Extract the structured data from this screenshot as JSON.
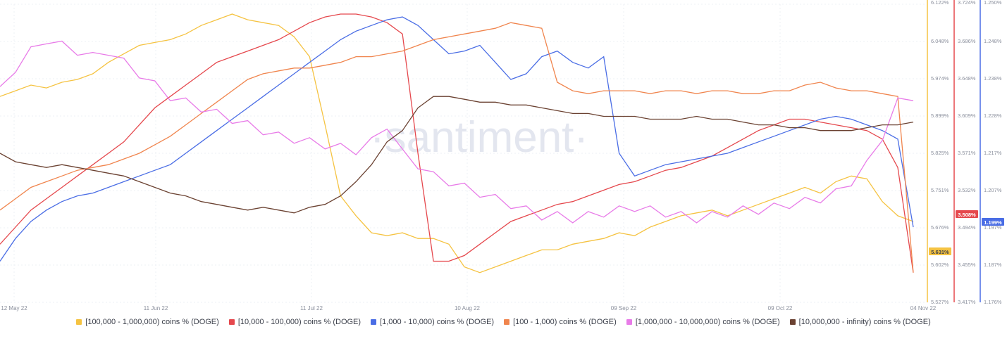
{
  "watermark": "·santiment·",
  "chart_data": {
    "type": "line",
    "x_ticks": [
      "12 May 22",
      "11 Jun 22",
      "11 Jul 22",
      "10 Aug 22",
      "09 Sep 22",
      "09 Oct 22",
      "04 Nov 22"
    ],
    "axes": [
      {
        "id": "yellow",
        "color": "#f5c342",
        "ticks": [
          "6.122%",
          "6.048%",
          "5.974%",
          "5.899%",
          "5.825%",
          "5.751%",
          "5.676%",
          "5.602%",
          "5.527%"
        ],
        "current": "5.631%"
      },
      {
        "id": "red",
        "color": "#e5484d",
        "ticks": [
          "3.724%",
          "3.686%",
          "3.648%",
          "3.609%",
          "3.571%",
          "3.532%",
          "3.494%",
          "3.455%",
          "3.417%"
        ],
        "current": "3.508%"
      },
      {
        "id": "blue",
        "color": "#4a6de5",
        "ticks": [
          "1.250%",
          "1.248%",
          "1.238%",
          "1.228%",
          "1.217%",
          "1.207%",
          "1.197%",
          "1.187%",
          "1.176%"
        ],
        "current": "1.199%"
      }
    ],
    "series": [
      {
        "name": "[100,000  - 1,000,000) coins % (DOGE)",
        "color": "#f5c342",
        "values": [
          0.7,
          0.72,
          0.74,
          0.73,
          0.75,
          0.76,
          0.78,
          0.82,
          0.85,
          0.88,
          0.89,
          0.9,
          0.92,
          0.95,
          0.97,
          0.99,
          0.97,
          0.96,
          0.95,
          0.91,
          0.84,
          0.6,
          0.35,
          0.28,
          0.22,
          0.21,
          0.22,
          0.2,
          0.2,
          0.18,
          0.1,
          0.08,
          0.1,
          0.12,
          0.14,
          0.16,
          0.16,
          0.18,
          0.19,
          0.2,
          0.22,
          0.21,
          0.24,
          0.26,
          0.28,
          0.29,
          0.3,
          0.28,
          0.3,
          0.32,
          0.34,
          0.36,
          0.38,
          0.36,
          0.4,
          0.42,
          0.41,
          0.33,
          0.28,
          0.26
        ]
      },
      {
        "name": "[10,000 - 100,000) coins % (DOGE)",
        "color": "#e5484d",
        "values": [
          0.18,
          0.24,
          0.3,
          0.34,
          0.38,
          0.42,
          0.46,
          0.5,
          0.54,
          0.6,
          0.66,
          0.7,
          0.74,
          0.78,
          0.82,
          0.84,
          0.86,
          0.88,
          0.9,
          0.93,
          0.96,
          0.98,
          0.99,
          0.99,
          0.98,
          0.96,
          0.92,
          0.5,
          0.12,
          0.12,
          0.14,
          0.18,
          0.22,
          0.26,
          0.28,
          0.3,
          0.32,
          0.33,
          0.35,
          0.37,
          0.39,
          0.4,
          0.42,
          0.44,
          0.45,
          0.47,
          0.49,
          0.52,
          0.55,
          0.58,
          0.6,
          0.62,
          0.62,
          0.61,
          0.6,
          0.59,
          0.58,
          0.55,
          0.45,
          0.08
        ]
      },
      {
        "name": "[1,000 - 10,000) coins % (DOGE)",
        "color": "#4a6de5",
        "values": [
          0.12,
          0.2,
          0.26,
          0.3,
          0.33,
          0.35,
          0.36,
          0.38,
          0.4,
          0.42,
          0.44,
          0.46,
          0.5,
          0.54,
          0.58,
          0.62,
          0.66,
          0.7,
          0.74,
          0.78,
          0.82,
          0.86,
          0.9,
          0.93,
          0.95,
          0.97,
          0.98,
          0.95,
          0.9,
          0.85,
          0.86,
          0.88,
          0.82,
          0.76,
          0.78,
          0.84,
          0.86,
          0.82,
          0.8,
          0.84,
          0.5,
          0.42,
          0.44,
          0.46,
          0.47,
          0.48,
          0.49,
          0.5,
          0.52,
          0.54,
          0.56,
          0.58,
          0.6,
          0.62,
          0.63,
          0.62,
          0.6,
          0.58,
          0.55,
          0.24
        ]
      },
      {
        "name": "[100 - 1,000) coins % (DOGE)",
        "color": "#f0854e",
        "values": [
          0.3,
          0.34,
          0.38,
          0.4,
          0.42,
          0.44,
          0.45,
          0.46,
          0.48,
          0.5,
          0.53,
          0.56,
          0.6,
          0.64,
          0.68,
          0.72,
          0.76,
          0.78,
          0.79,
          0.8,
          0.8,
          0.81,
          0.82,
          0.84,
          0.84,
          0.85,
          0.86,
          0.88,
          0.9,
          0.91,
          0.92,
          0.93,
          0.94,
          0.96,
          0.95,
          0.94,
          0.75,
          0.72,
          0.71,
          0.72,
          0.72,
          0.72,
          0.71,
          0.72,
          0.72,
          0.71,
          0.72,
          0.72,
          0.71,
          0.71,
          0.72,
          0.72,
          0.74,
          0.75,
          0.73,
          0.72,
          0.72,
          0.71,
          0.7,
          0.08
        ]
      },
      {
        "name": "[1,000,000 - 10,000,000) coins % (DOGE)",
        "color": "#e87be8",
        "values": [
          0.72,
          0.8,
          0.86,
          0.9,
          0.88,
          0.86,
          0.84,
          0.86,
          0.82,
          0.78,
          0.74,
          0.7,
          0.68,
          0.66,
          0.64,
          0.62,
          0.6,
          0.58,
          0.56,
          0.55,
          0.54,
          0.53,
          0.52,
          0.51,
          0.54,
          0.6,
          0.5,
          0.46,
          0.42,
          0.4,
          0.38,
          0.36,
          0.34,
          0.32,
          0.3,
          0.28,
          0.28,
          0.27,
          0.28,
          0.29,
          0.3,
          0.31,
          0.3,
          0.29,
          0.28,
          0.27,
          0.28,
          0.29,
          0.3,
          0.3,
          0.31,
          0.32,
          0.33,
          0.34,
          0.36,
          0.4,
          0.46,
          0.56,
          0.68,
          0.7
        ]
      },
      {
        "name": "[10,000,000 - infinity) coins % (DOGE)",
        "color": "#6b4232",
        "values": [
          0.5,
          0.47,
          0.46,
          0.45,
          0.46,
          0.45,
          0.44,
          0.43,
          0.42,
          0.4,
          0.38,
          0.36,
          0.35,
          0.33,
          0.32,
          0.31,
          0.3,
          0.31,
          0.3,
          0.29,
          0.31,
          0.32,
          0.35,
          0.4,
          0.46,
          0.54,
          0.58,
          0.66,
          0.7,
          0.7,
          0.69,
          0.68,
          0.68,
          0.67,
          0.67,
          0.66,
          0.65,
          0.64,
          0.64,
          0.63,
          0.63,
          0.63,
          0.62,
          0.62,
          0.62,
          0.63,
          0.62,
          0.62,
          0.61,
          0.6,
          0.6,
          0.59,
          0.59,
          0.58,
          0.58,
          0.58,
          0.59,
          0.6,
          0.6,
          0.61
        ]
      }
    ],
    "ylim": [
      0,
      1
    ]
  }
}
